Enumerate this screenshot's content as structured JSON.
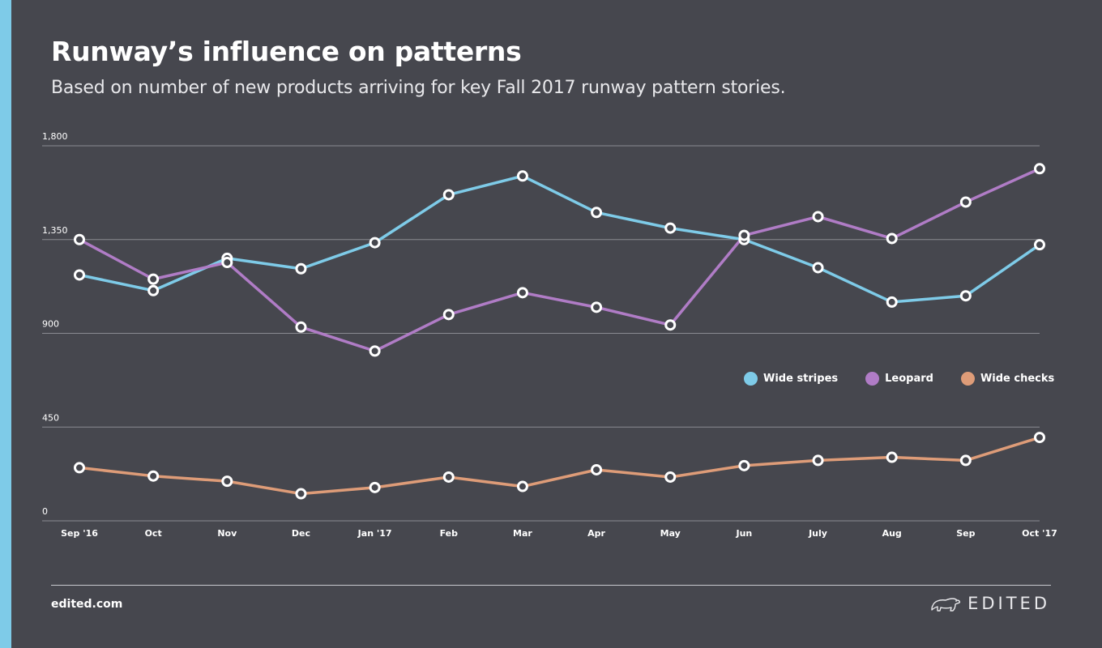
{
  "header": {
    "title": "Runway’s influence on patterns",
    "subtitle": "Based on number of new products arriving for key Fall 2017 runway pattern stories."
  },
  "colors": {
    "background": "#46474e",
    "side_bar": "#7ecbe8",
    "grid": "#8a8b91",
    "axis_text": "#ffffff",
    "marker_fill": "#ffffff",
    "marker_stroke": "#46474e"
  },
  "chart_data": {
    "type": "line",
    "title": "Runway’s influence on patterns",
    "subtitle": "Based on number of new products arriving for key Fall 2017 runway pattern stories.",
    "xlabel": "",
    "ylabel": "",
    "ylim": [
      0,
      1800
    ],
    "yticks": [
      0,
      450,
      900,
      1350,
      1800
    ],
    "ytick_labels": [
      "0",
      "450",
      "900",
      "1,350",
      "1,800"
    ],
    "grid": true,
    "legend_position": "right-middle",
    "categories": [
      "Sep '16",
      "Oct",
      "Nov",
      "Dec",
      "Jan '17",
      "Feb",
      "Mar",
      "Apr",
      "May",
      "Jun",
      "July",
      "Aug",
      "Sep",
      "Oct '17"
    ],
    "series": [
      {
        "name": "Wide stripes",
        "color": "#7ecbe8",
        "values": [
          1180,
          1105,
          1260,
          1210,
          1335,
          1565,
          1655,
          1480,
          1405,
          1350,
          1215,
          1050,
          1080,
          1325
        ]
      },
      {
        "name": "Leopard",
        "color": "#b07cc6",
        "values": [
          1350,
          1160,
          1240,
          930,
          815,
          990,
          1095,
          1025,
          940,
          1370,
          1460,
          1355,
          1530,
          1690
        ]
      },
      {
        "name": "Wide checks",
        "color": "#de9c78",
        "values": [
          255,
          215,
          190,
          130,
          160,
          210,
          165,
          245,
          210,
          265,
          290,
          305,
          290,
          400
        ]
      }
    ]
  },
  "footer": {
    "url": "edited.com",
    "brand": "EDITED",
    "brand_icon": "polar-bear-icon"
  }
}
